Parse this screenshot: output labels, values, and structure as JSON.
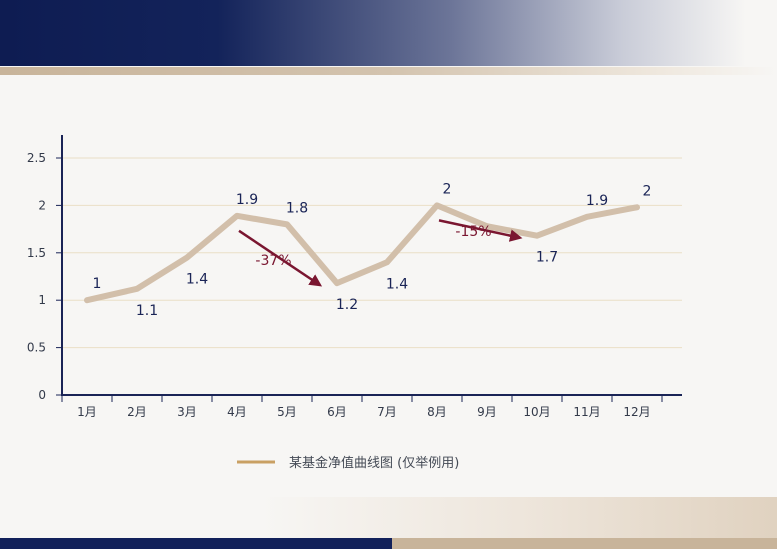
{
  "chart_data": {
    "type": "line",
    "categories": [
      "1月",
      "2月",
      "3月",
      "4月",
      "5月",
      "6月",
      "7月",
      "8月",
      "9月",
      "10月",
      "11月",
      "12月"
    ],
    "series": [
      {
        "name": "某基金净值曲线图 (仅举例用)",
        "values": [
          1,
          1.12,
          1.45,
          1.89,
          1.8,
          1.18,
          1.4,
          2.0,
          1.78,
          1.68,
          1.88,
          1.98
        ],
        "color": "#d2bfaa"
      }
    ],
    "data_labels": [
      "1",
      "1.1",
      "1.4",
      "1.9",
      "1.8",
      "1.2",
      "1.4",
      "2",
      "",
      "1.7",
      "1.9",
      "2"
    ],
    "yticks": [
      "0",
      "0.5",
      "1",
      "1.5",
      "2",
      "2.5"
    ],
    "ylim": [
      0,
      2.5
    ],
    "grid": true,
    "legend_position": "bottom",
    "annotations": [
      {
        "label": "-37%",
        "color": "#7a1630"
      },
      {
        "label": "-15%",
        "color": "#7a1630"
      }
    ],
    "colors": {
      "axis": "#1a2456",
      "grid": "#eadfc6",
      "line": "#d2bfaa",
      "arrow": "#7a1630"
    }
  }
}
